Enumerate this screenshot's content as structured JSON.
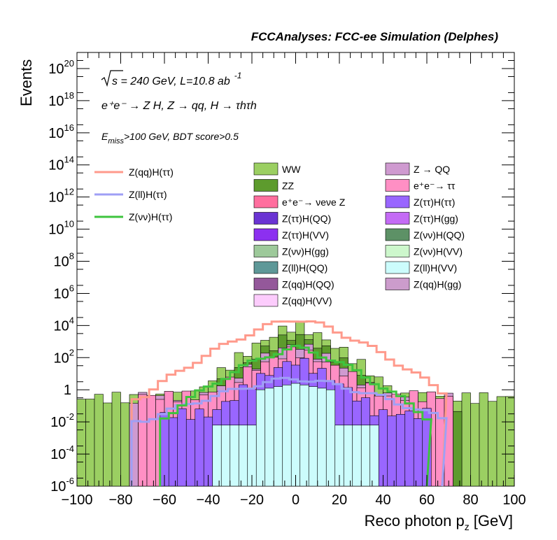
{
  "chart_data": {
    "type": "histogram",
    "title": "FCCAnalyses: FCC-ee Simulation (Delphes)",
    "xlabel": "Reco photon p",
    "xlabel_sub": "z",
    "xlabel_unit": "[GeV]",
    "ylabel": "Events",
    "xlim": [
      -100,
      100
    ],
    "ylim_log10": [
      -6,
      21
    ],
    "y_scale": "log",
    "x_ticks": [
      "−100",
      "−80",
      "−60",
      "−40",
      "−20",
      "0",
      "20",
      "40",
      "60",
      "80",
      "100"
    ],
    "x_tick_values": [
      -100,
      -80,
      -60,
      -40,
      -20,
      0,
      20,
      40,
      60,
      80,
      100
    ],
    "y_tick_values_log10": [
      -6,
      -4,
      -2,
      0,
      2,
      4,
      6,
      8,
      10,
      12,
      14,
      16,
      18,
      20
    ],
    "y_tick_labels": [
      {
        "base": "10",
        "exp": "-6"
      },
      {
        "base": "10",
        "exp": "-4"
      },
      {
        "base": "10",
        "exp": "-2"
      },
      {
        "base": "1",
        "exp": ""
      },
      {
        "base": "10",
        "exp": "2"
      },
      {
        "base": "10",
        "exp": "4"
      },
      {
        "base": "10",
        "exp": "6"
      },
      {
        "base": "10",
        "exp": "8"
      },
      {
        "base": "10",
        "exp": "10"
      },
      {
        "base": "10",
        "exp": "12"
      },
      {
        "base": "10",
        "exp": "14"
      },
      {
        "base": "10",
        "exp": "16"
      },
      {
        "base": "10",
        "exp": "18"
      },
      {
        "base": "10",
        "exp": "20"
      }
    ],
    "annotations": {
      "energy": "s = 240 GeV, L=10.8 ab",
      "energy_exp": "-1",
      "process": "e⁺e⁻ → Z H, Z → qq, H → τhτh",
      "cut_main": "E",
      "cut_sub": "miss",
      "cut_rest": ">100 GeV, BDT score>0.5"
    },
    "signals": [
      {
        "name": "Z(qq)H(ττ)",
        "color": "#ff9a8c",
        "x_range": [
          -75,
          67
        ],
        "peak_log10": 4.4,
        "edge_log10": -0.5
      },
      {
        "name": "Z(ll)H(ττ)",
        "color": "#9f9ff5",
        "x_range": [
          -75,
          67
        ],
        "peak_log10": 0.7,
        "edge_log10": -2.0
      },
      {
        "name": "Z(νν)H(ττ)",
        "color": "#3ec43e",
        "x_range": [
          -62,
          60
        ],
        "peak_log10": 2.6,
        "edge_log10": -1.8
      }
    ],
    "backgrounds": [
      {
        "name": "WW",
        "color": "#9bcf62"
      },
      {
        "name": "Z → QQ",
        "color": "#cf9ad0"
      },
      {
        "name": "ZZ",
        "color": "#5d9b2d"
      },
      {
        "name": "e⁺e⁻→ ττ",
        "color": "#ff8fc4"
      },
      {
        "name": "e⁺e⁻→ νeνe Z",
        "color": "#ff6e9e"
      },
      {
        "name": "Z(ττ)H(ττ)",
        "color": "#9966ff"
      },
      {
        "name": "Z(ττ)H(QQ)",
        "color": "#6a34d3"
      },
      {
        "name": "Z(ττ)H(gg)",
        "color": "#c46bf5"
      },
      {
        "name": "Z(ττ)H(VV)",
        "color": "#8c30f0"
      },
      {
        "name": "Z(νν)H(QQ)",
        "color": "#5d9166"
      },
      {
        "name": "Z(νν)H(gg)",
        "color": "#9dc99a"
      },
      {
        "name": "Z(νν)H(VV)",
        "color": "#cdf7cc"
      },
      {
        "name": "Z(ll)H(QQ)",
        "color": "#5e9898"
      },
      {
        "name": "Z(ll)H(VV)",
        "color": "#ccfcfc"
      },
      {
        "name": "Z(qq)H(QQ)",
        "color": "#94589a"
      },
      {
        "name": "Z(qq)H(gg)",
        "color": "#cc9ccc"
      },
      {
        "name": "Z(qq)H(VV)",
        "color": "#fcccfc"
      }
    ],
    "stack_profiles": [
      {
        "name": "WW",
        "range": [
          -100,
          100
        ],
        "peak": 4.0,
        "edge": -0.5,
        "width": 48,
        "floor": -0.5
      },
      {
        "name": "ZZ",
        "range": [
          -76,
          76
        ],
        "peak": 3.4,
        "edge": -1.0,
        "width": 45,
        "floor": -1.0
      },
      {
        "name": "Z → QQ",
        "range": [
          -76,
          72
        ],
        "peak": 2.8,
        "edge": -0.5,
        "width": 40,
        "floor": -0.7
      },
      {
        "name": "e⁺e⁻→ ττ",
        "range": [
          -72,
          72
        ],
        "peak": 2.4,
        "edge": -0.4,
        "width": 40,
        "floor": -0.8
      },
      {
        "name": "Z(ττ)H(ττ)",
        "range": [
          -62,
          62
        ],
        "peak": 1.8,
        "edge": -1.5,
        "width": 38,
        "floor": -2.0
      },
      {
        "name": "Z(ll)H(VV)",
        "range": [
          -42,
          60
        ],
        "peak": 0.4,
        "edge": -1.6,
        "width": 30,
        "floor": -6.0
      }
    ]
  }
}
